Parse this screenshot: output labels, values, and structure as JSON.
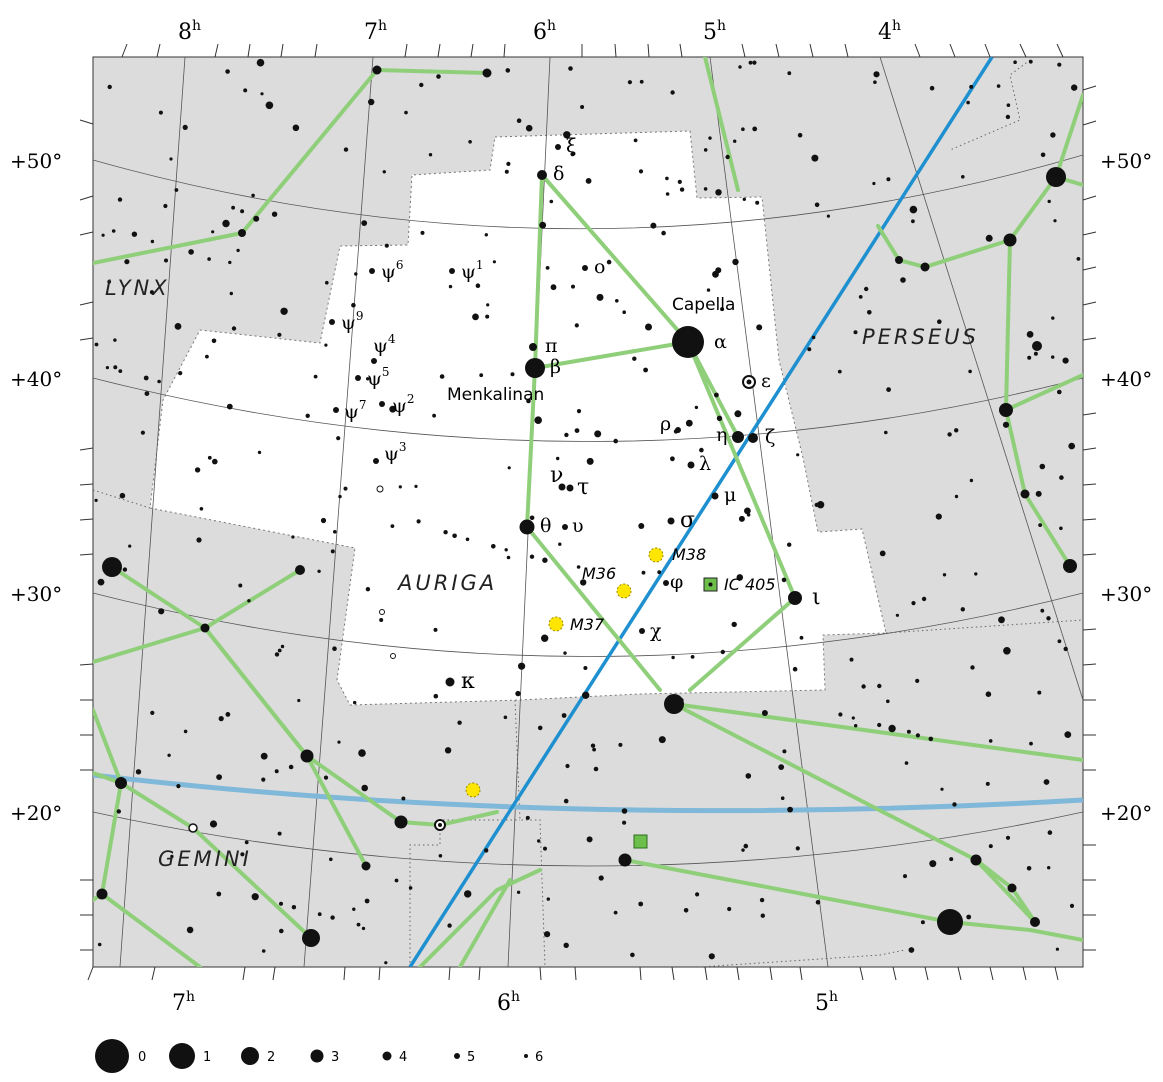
{
  "ra_top": [
    {
      "h": "8",
      "u": "h"
    },
    {
      "h": "7",
      "u": "h"
    },
    {
      "h": "6",
      "u": "h"
    },
    {
      "h": "5",
      "u": "h"
    },
    {
      "h": "4",
      "u": "h"
    }
  ],
  "ra_bottom": [
    {
      "h": "7",
      "u": "h"
    },
    {
      "h": "6",
      "u": "h"
    },
    {
      "h": "5",
      "u": "h"
    }
  ],
  "dec_left": [
    "+50°",
    "+40°",
    "+30°",
    "+20°"
  ],
  "dec_right": [
    "+50°",
    "+40°",
    "+30°",
    "+20°"
  ],
  "constellations": {
    "lynx": "LYNX",
    "perseus": "PERSEUS",
    "auriga": "AURIGA",
    "gemini": "GEMINI"
  },
  "stars": {
    "alpha": "α",
    "capella": "Capella",
    "beta": "β",
    "menkalinan": "Menkalinan",
    "pi": "π",
    "delta": "δ",
    "xi": "ξ",
    "omicron": "ο",
    "epsilon": "ε",
    "eta": "η",
    "zeta": "ζ",
    "iota": "ι",
    "theta": "θ",
    "upsilon": "υ",
    "nu": "ν",
    "tau": "τ",
    "rho": "ρ",
    "lambda": "λ",
    "mu": "μ",
    "sigma": "σ",
    "phi": "φ",
    "chi": "χ",
    "kappa": "κ",
    "psi": "ψ",
    "psi1": "1",
    "psi2": "2",
    "psi3": "3",
    "psi4": "4",
    "psi5": "5",
    "psi6": "6",
    "psi7": "7",
    "psi9": "9"
  },
  "deep_sky": {
    "m36": "M36",
    "m37": "M37",
    "m38": "M38",
    "ic405": "IC 405"
  },
  "legend": [
    "0",
    "1",
    "2",
    "3",
    "4",
    "5",
    "6"
  ],
  "colors": {
    "background_outside": "#dcdcdc",
    "constellation_area": "#ffffff",
    "constellation_lines": "#8fcf7a",
    "ecliptic": "#1e90d0",
    "galactic_equator": "#7fb8d8",
    "grid": "#555555",
    "star": "#111111",
    "cluster": "#ffe600",
    "nebula": "#6cbf4a"
  }
}
